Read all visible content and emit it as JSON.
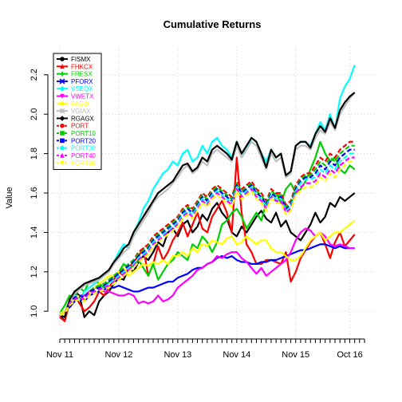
{
  "chart_data": {
    "type": "line",
    "title": "Cumulative Returns",
    "xlabel": "",
    "ylabel": "Value",
    "x_tick_labels": [
      "Nov 11",
      "Nov 12",
      "Nov 13",
      "Nov 14",
      "Nov 15",
      "Oct 16"
    ],
    "x_tick_months": [
      0,
      12,
      24,
      36,
      48,
      59
    ],
    "x_range_months": [
      0,
      62
    ],
    "yticks": [
      1.0,
      1.2,
      1.4,
      1.6,
      1.8,
      2.0,
      2.2
    ],
    "ylim": [
      0.92,
      2.28
    ],
    "grid": true,
    "legend_position": "top-left",
    "x_step": "monthly",
    "series": [
      {
        "name": "FISMX",
        "color": "#000000",
        "style": "solid",
        "marker": "circle",
        "values": [
          0.98,
          0.95,
          1.05,
          1.1,
          1.08,
          0.97,
          1.0,
          0.98,
          1.05,
          1.08,
          1.1,
          1.14,
          1.17,
          1.16,
          1.22,
          1.2,
          1.25,
          1.28,
          1.26,
          1.3,
          1.35,
          1.33,
          1.4,
          1.42,
          1.38,
          1.44,
          1.46,
          1.4,
          1.43,
          1.49,
          1.46,
          1.52,
          1.55,
          1.5,
          1.47,
          1.4,
          1.38,
          1.43,
          1.4,
          1.44,
          1.48,
          1.51,
          1.47,
          1.45,
          1.5,
          1.43,
          1.46,
          1.4,
          1.38,
          1.36,
          1.4,
          1.44,
          1.5,
          1.45,
          1.48,
          1.55,
          1.53,
          1.58,
          1.56,
          1.58,
          1.6
        ]
      },
      {
        "name": "FHKCX",
        "color": "#ff0000",
        "style": "solid",
        "marker": "triangle",
        "values": [
          0.97,
          0.95,
          1.05,
          1.08,
          1.04,
          1.0,
          1.02,
          1.05,
          1.1,
          1.08,
          1.12,
          1.16,
          1.2,
          1.18,
          1.22,
          1.25,
          1.28,
          1.32,
          1.18,
          1.24,
          1.33,
          1.26,
          1.3,
          1.36,
          1.4,
          1.45,
          1.38,
          1.44,
          1.5,
          1.42,
          1.4,
          1.48,
          1.52,
          1.56,
          1.5,
          1.4,
          1.78,
          1.5,
          1.34,
          1.3,
          1.24,
          1.24,
          1.26,
          1.26,
          1.25,
          1.24,
          1.3,
          1.15,
          1.2,
          1.27,
          1.31,
          1.35,
          1.38,
          1.4,
          1.34,
          1.27,
          1.35,
          1.4,
          1.33,
          1.36,
          1.39
        ]
      },
      {
        "name": "FRESX",
        "color": "#00cd00",
        "style": "solid",
        "marker": "plus",
        "values": [
          0.99,
          1.03,
          1.08,
          1.07,
          1.12,
          1.1,
          1.15,
          1.16,
          1.14,
          1.12,
          1.15,
          1.18,
          1.2,
          1.24,
          1.22,
          1.23,
          1.26,
          1.22,
          1.18,
          1.24,
          1.16,
          1.2,
          1.24,
          1.26,
          1.3,
          1.28,
          1.26,
          1.34,
          1.32,
          1.38,
          1.35,
          1.3,
          1.35,
          1.44,
          1.46,
          1.5,
          1.52,
          1.48,
          1.42,
          1.46,
          1.5,
          1.46,
          1.55,
          1.58,
          1.6,
          1.55,
          1.62,
          1.65,
          1.6,
          1.62,
          1.66,
          1.72,
          1.78,
          1.86,
          1.8,
          1.76,
          1.78,
          1.72,
          1.7,
          1.74,
          1.72
        ]
      },
      {
        "name": "PFORX",
        "color": "#0000ff",
        "style": "solid",
        "marker": "x",
        "values": [
          0.99,
          1.0,
          1.02,
          1.05,
          1.06,
          1.05,
          1.08,
          1.09,
          1.1,
          1.11,
          1.12,
          1.12,
          1.13,
          1.12,
          1.11,
          1.1,
          1.1,
          1.11,
          1.12,
          1.12,
          1.13,
          1.14,
          1.15,
          1.15,
          1.17,
          1.18,
          1.19,
          1.21,
          1.22,
          1.22,
          1.24,
          1.25,
          1.27,
          1.28,
          1.27,
          1.28,
          1.26,
          1.25,
          1.25,
          1.24,
          1.24,
          1.25,
          1.25,
          1.26,
          1.26,
          1.27,
          1.28,
          1.29,
          1.3,
          1.31,
          1.31,
          1.32,
          1.33,
          1.34,
          1.34,
          1.33,
          1.32,
          1.33,
          1.32,
          1.32,
          1.32
        ]
      },
      {
        "name": "VSEQX",
        "color": "#00ffff",
        "style": "solid",
        "marker": "diamond",
        "values": [
          0.98,
          1.0,
          1.05,
          1.08,
          1.06,
          1.1,
          1.12,
          1.14,
          1.16,
          1.18,
          1.2,
          1.25,
          1.3,
          1.34,
          1.32,
          1.4,
          1.45,
          1.52,
          1.56,
          1.62,
          1.66,
          1.7,
          1.72,
          1.76,
          1.74,
          1.8,
          1.82,
          1.76,
          1.78,
          1.84,
          1.8,
          1.86,
          1.88,
          1.84,
          1.82,
          1.78,
          1.86,
          1.8,
          1.82,
          1.88,
          1.86,
          1.8,
          1.76,
          1.82,
          1.78,
          1.8,
          1.68,
          1.7,
          1.84,
          1.86,
          1.86,
          1.84,
          1.9,
          1.96,
          1.92,
          2.0,
          1.92,
          2.08,
          2.14,
          2.18,
          2.25
        ]
      },
      {
        "name": "VWETX",
        "color": "#ff00ff",
        "style": "solid",
        "marker": "triangle-down",
        "values": [
          0.97,
          1.0,
          1.04,
          1.06,
          1.08,
          1.08,
          1.1,
          1.12,
          1.12,
          1.1,
          1.1,
          1.09,
          1.08,
          1.08,
          1.09,
          1.08,
          1.04,
          1.05,
          1.04,
          1.05,
          1.08,
          1.05,
          1.06,
          1.08,
          1.12,
          1.14,
          1.16,
          1.18,
          1.21,
          1.22,
          1.24,
          1.25,
          1.28,
          1.27,
          1.29,
          1.3,
          1.3,
          1.27,
          1.25,
          1.22,
          1.19,
          1.22,
          1.18,
          1.2,
          1.22,
          1.24,
          1.26,
          1.3,
          1.36,
          1.4,
          1.42,
          1.41,
          1.38,
          1.4,
          1.38,
          1.34,
          1.33,
          1.34,
          1.33,
          1.32,
          1.32
        ]
      },
      {
        "name": "FAGIX",
        "color": "#ffff00",
        "style": "solid",
        "marker": "diamond",
        "values": [
          0.99,
          1.0,
          1.04,
          1.06,
          1.08,
          1.06,
          1.09,
          1.12,
          1.14,
          1.16,
          1.18,
          1.18,
          1.2,
          1.22,
          1.18,
          1.2,
          1.22,
          1.24,
          1.23,
          1.25,
          1.24,
          1.26,
          1.24,
          1.28,
          1.28,
          1.3,
          1.28,
          1.32,
          1.3,
          1.34,
          1.33,
          1.36,
          1.35,
          1.34,
          1.37,
          1.38,
          1.34,
          1.35,
          1.38,
          1.36,
          1.34,
          1.36,
          1.36,
          1.32,
          1.3,
          1.3,
          1.28,
          1.26,
          1.26,
          1.28,
          1.32,
          1.36,
          1.38,
          1.4,
          1.36,
          1.38,
          1.4,
          1.4,
          1.42,
          1.44,
          1.46
        ]
      },
      {
        "name": "VGIAX",
        "color": "#bebebe",
        "style": "solid",
        "marker": "asterisk",
        "values": [
          0.98,
          0.97,
          1.05,
          1.09,
          1.11,
          1.13,
          1.14,
          1.15,
          1.16,
          1.18,
          1.2,
          1.24,
          1.27,
          1.3,
          1.32,
          1.38,
          1.42,
          1.46,
          1.5,
          1.55,
          1.58,
          1.6,
          1.62,
          1.65,
          1.68,
          1.72,
          1.74,
          1.7,
          1.72,
          1.76,
          1.74,
          1.8,
          1.82,
          1.8,
          1.78,
          1.76,
          1.84,
          1.78,
          1.82,
          1.86,
          1.84,
          1.78,
          1.72,
          1.8,
          1.76,
          1.78,
          1.68,
          1.7,
          1.82,
          1.84,
          1.84,
          1.82,
          1.88,
          1.92,
          1.9,
          1.96,
          1.92,
          2.0,
          2.04,
          2.08,
          2.11
        ]
      },
      {
        "name": "RGAGX",
        "color": "#000000",
        "style": "solid",
        "marker": "diamond",
        "values": [
          0.98,
          0.97,
          1.06,
          1.1,
          1.12,
          1.14,
          1.15,
          1.16,
          1.17,
          1.19,
          1.21,
          1.25,
          1.28,
          1.32,
          1.34,
          1.4,
          1.44,
          1.48,
          1.52,
          1.56,
          1.6,
          1.62,
          1.64,
          1.66,
          1.7,
          1.74,
          1.75,
          1.71,
          1.73,
          1.78,
          1.76,
          1.82,
          1.84,
          1.82,
          1.8,
          1.77,
          1.86,
          1.8,
          1.84,
          1.88,
          1.86,
          1.8,
          1.73,
          1.82,
          1.78,
          1.8,
          1.69,
          1.71,
          1.84,
          1.86,
          1.86,
          1.83,
          1.9,
          1.94,
          1.91,
          1.98,
          1.93,
          2.02,
          2.06,
          2.09,
          2.11
        ]
      },
      {
        "name": "PORT",
        "color": "#ff0000",
        "style": "dashed",
        "marker": "circle",
        "values": [
          0.98,
          0.99,
          1.04,
          1.07,
          1.08,
          1.07,
          1.1,
          1.12,
          1.13,
          1.14,
          1.16,
          1.18,
          1.2,
          1.22,
          1.24,
          1.26,
          1.3,
          1.32,
          1.34,
          1.38,
          1.4,
          1.42,
          1.44,
          1.46,
          1.48,
          1.52,
          1.54,
          1.52,
          1.56,
          1.6,
          1.58,
          1.62,
          1.64,
          1.62,
          1.6,
          1.58,
          1.66,
          1.62,
          1.64,
          1.66,
          1.62,
          1.6,
          1.56,
          1.62,
          1.6,
          1.6,
          1.54,
          1.56,
          1.64,
          1.68,
          1.7,
          1.7,
          1.74,
          1.78,
          1.76,
          1.8,
          1.78,
          1.82,
          1.84,
          1.86,
          1.86
        ]
      },
      {
        "name": "PORT10",
        "color": "#00cd00",
        "style": "dashed",
        "marker": "square",
        "values": [
          0.98,
          0.99,
          1.04,
          1.07,
          1.08,
          1.07,
          1.1,
          1.12,
          1.13,
          1.14,
          1.16,
          1.18,
          1.2,
          1.22,
          1.24,
          1.26,
          1.29,
          1.31,
          1.33,
          1.37,
          1.39,
          1.41,
          1.43,
          1.45,
          1.47,
          1.51,
          1.53,
          1.51,
          1.55,
          1.59,
          1.57,
          1.61,
          1.63,
          1.61,
          1.59,
          1.57,
          1.65,
          1.61,
          1.63,
          1.65,
          1.61,
          1.59,
          1.55,
          1.61,
          1.59,
          1.59,
          1.53,
          1.55,
          1.63,
          1.67,
          1.69,
          1.69,
          1.72,
          1.76,
          1.74,
          1.78,
          1.76,
          1.8,
          1.82,
          1.84,
          1.84
        ]
      },
      {
        "name": "PORT20",
        "color": "#0000ff",
        "style": "dashed",
        "marker": "square",
        "values": [
          0.98,
          0.99,
          1.04,
          1.07,
          1.08,
          1.07,
          1.1,
          1.11,
          1.12,
          1.13,
          1.15,
          1.17,
          1.19,
          1.21,
          1.23,
          1.25,
          1.28,
          1.3,
          1.32,
          1.36,
          1.38,
          1.4,
          1.42,
          1.44,
          1.46,
          1.5,
          1.52,
          1.5,
          1.54,
          1.58,
          1.56,
          1.6,
          1.62,
          1.6,
          1.58,
          1.56,
          1.64,
          1.6,
          1.62,
          1.64,
          1.6,
          1.58,
          1.54,
          1.6,
          1.58,
          1.58,
          1.52,
          1.54,
          1.62,
          1.66,
          1.68,
          1.68,
          1.7,
          1.74,
          1.72,
          1.76,
          1.74,
          1.78,
          1.8,
          1.82,
          1.82
        ]
      },
      {
        "name": "PORT30",
        "color": "#00ffff",
        "style": "dashed",
        "marker": "circle",
        "values": [
          0.98,
          0.99,
          1.04,
          1.06,
          1.07,
          1.06,
          1.09,
          1.1,
          1.11,
          1.12,
          1.14,
          1.16,
          1.18,
          1.2,
          1.22,
          1.24,
          1.27,
          1.29,
          1.31,
          1.35,
          1.37,
          1.39,
          1.41,
          1.43,
          1.45,
          1.49,
          1.51,
          1.49,
          1.53,
          1.57,
          1.55,
          1.59,
          1.61,
          1.59,
          1.57,
          1.55,
          1.63,
          1.59,
          1.61,
          1.63,
          1.59,
          1.57,
          1.53,
          1.59,
          1.57,
          1.57,
          1.51,
          1.53,
          1.61,
          1.65,
          1.67,
          1.67,
          1.68,
          1.72,
          1.7,
          1.74,
          1.72,
          1.76,
          1.78,
          1.8,
          1.8
        ]
      },
      {
        "name": "PORT40",
        "color": "#ff00ff",
        "style": "dashed",
        "marker": "triangle",
        "values": [
          0.98,
          0.99,
          1.04,
          1.06,
          1.07,
          1.06,
          1.09,
          1.1,
          1.11,
          1.12,
          1.13,
          1.15,
          1.17,
          1.19,
          1.21,
          1.23,
          1.26,
          1.28,
          1.3,
          1.34,
          1.36,
          1.38,
          1.4,
          1.42,
          1.44,
          1.48,
          1.5,
          1.48,
          1.52,
          1.56,
          1.54,
          1.58,
          1.6,
          1.58,
          1.56,
          1.54,
          1.62,
          1.58,
          1.6,
          1.62,
          1.58,
          1.56,
          1.52,
          1.58,
          1.56,
          1.56,
          1.5,
          1.52,
          1.6,
          1.63,
          1.65,
          1.65,
          1.66,
          1.7,
          1.68,
          1.72,
          1.7,
          1.74,
          1.76,
          1.78,
          1.78
        ]
      },
      {
        "name": "PORT50",
        "color": "#ffff00",
        "style": "dashed",
        "marker": "triangle-down",
        "values": [
          0.98,
          0.99,
          1.03,
          1.05,
          1.06,
          1.05,
          1.08,
          1.09,
          1.1,
          1.11,
          1.12,
          1.14,
          1.16,
          1.18,
          1.2,
          1.22,
          1.25,
          1.27,
          1.29,
          1.33,
          1.35,
          1.37,
          1.39,
          1.41,
          1.43,
          1.47,
          1.49,
          1.47,
          1.51,
          1.55,
          1.53,
          1.57,
          1.59,
          1.57,
          1.55,
          1.53,
          1.61,
          1.57,
          1.59,
          1.61,
          1.57,
          1.55,
          1.51,
          1.57,
          1.55,
          1.55,
          1.49,
          1.51,
          1.59,
          1.61,
          1.63,
          1.63,
          1.64,
          1.68,
          1.66,
          1.7,
          1.68,
          1.72,
          1.74,
          1.76,
          1.76
        ]
      }
    ]
  }
}
